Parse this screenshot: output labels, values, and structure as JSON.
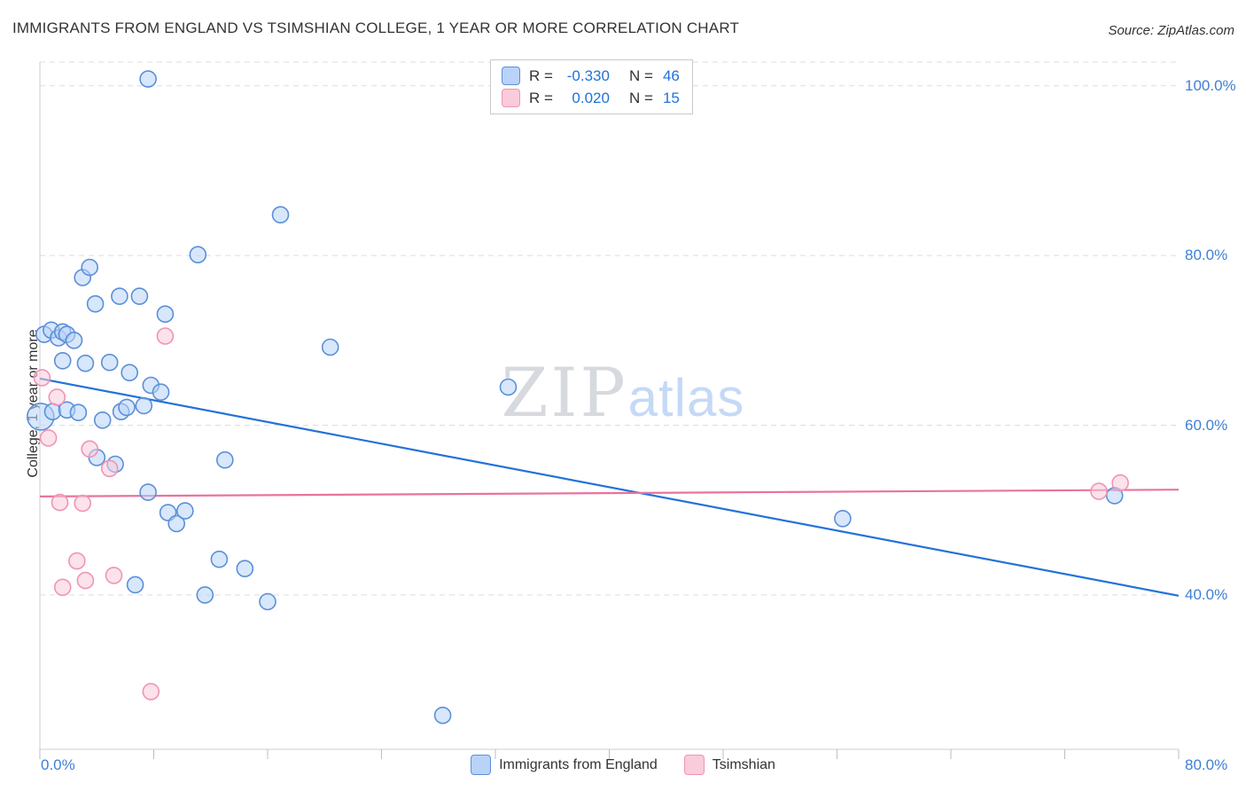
{
  "header": {
    "title": "IMMIGRANTS FROM ENGLAND VS TSIMSHIAN COLLEGE, 1 YEAR OR MORE CORRELATION CHART",
    "source": "Source: ZipAtlas.com"
  },
  "watermark": {
    "zip": "ZIP",
    "atlas": "atlas"
  },
  "axes": {
    "ylabel": "College, 1 year or more",
    "y_tick_labels": [
      "100.0%",
      "80.0%",
      "60.0%",
      "40.0%"
    ],
    "x_left_label": "0.0%",
    "x_right_label": "80.0%"
  },
  "legend_box": {
    "rows": [
      {
        "series": "Immigrants from England",
        "r_label": "R =",
        "r_value": "-0.330",
        "n_label": "N =",
        "n_value": "46"
      },
      {
        "series": "Tsimshian",
        "r_label": "R =",
        "r_value": "0.020",
        "n_label": "N =",
        "n_value": "15"
      }
    ]
  },
  "bottom_legend": [
    {
      "label": "Immigrants from England"
    },
    {
      "label": "Tsimshian"
    }
  ],
  "chart_data": {
    "type": "scatter",
    "title": "IMMIGRANTS FROM ENGLAND VS TSIMSHIAN COLLEGE, 1 YEAR OR MORE CORRELATION CHART",
    "ylabel": "College, 1 year or more",
    "xlim": [
      0,
      80
    ],
    "ylim": [
      21.8,
      102.8
    ],
    "x_ticks_pct": [
      0,
      8,
      16,
      24,
      32,
      40,
      48,
      56,
      64,
      72,
      80
    ],
    "y_grid": [
      100,
      80,
      60,
      40
    ],
    "grid_on": true,
    "legend_position": "bottom-center",
    "series": [
      {
        "name": "Immigrants from England",
        "R": -0.33,
        "N": 46,
        "stroke": "#5b8fd9",
        "fill": "#b8d3f7",
        "line_color": "#2272d9",
        "trend": [
          [
            0,
            65.5
          ],
          [
            80,
            39.9
          ]
        ],
        "points": [
          [
            7.6,
            100.8
          ],
          [
            16.9,
            84.8
          ],
          [
            11.1,
            80.1
          ],
          [
            3.0,
            77.4
          ],
          [
            3.5,
            78.6
          ],
          [
            3.9,
            74.3
          ],
          [
            5.6,
            75.2
          ],
          [
            7.0,
            75.2
          ],
          [
            8.8,
            73.1
          ],
          [
            20.4,
            69.2
          ],
          [
            0.3,
            70.7
          ],
          [
            0.8,
            71.2
          ],
          [
            1.3,
            70.3
          ],
          [
            1.6,
            71.0
          ],
          [
            1.9,
            70.7
          ],
          [
            2.4,
            70.0
          ],
          [
            1.6,
            67.6
          ],
          [
            3.2,
            67.3
          ],
          [
            4.9,
            67.4
          ],
          [
            6.3,
            66.2
          ],
          [
            7.8,
            64.7
          ],
          [
            8.5,
            63.9
          ],
          [
            32.9,
            64.5
          ],
          [
            0.05,
            61.0,
            15
          ],
          [
            0.9,
            61.6
          ],
          [
            1.9,
            61.8
          ],
          [
            2.7,
            61.5
          ],
          [
            4.4,
            60.6
          ],
          [
            5.7,
            61.6
          ],
          [
            6.1,
            62.1
          ],
          [
            7.3,
            62.3
          ],
          [
            4.0,
            56.2
          ],
          [
            5.3,
            55.4
          ],
          [
            13.0,
            55.9
          ],
          [
            7.6,
            52.1
          ],
          [
            9.0,
            49.7
          ],
          [
            9.6,
            48.4
          ],
          [
            10.2,
            49.9
          ],
          [
            56.4,
            49.0
          ],
          [
            75.5,
            51.7
          ],
          [
            12.6,
            44.2
          ],
          [
            14.4,
            43.1
          ],
          [
            6.7,
            41.2
          ],
          [
            11.6,
            40.0
          ],
          [
            16.0,
            39.2
          ],
          [
            28.3,
            25.8
          ]
        ]
      },
      {
        "name": "Tsimshian",
        "R": 0.02,
        "N": 15,
        "stroke": "#f094b4",
        "fill": "#f9cbdb",
        "line_color": "#e8739f",
        "trend": [
          [
            0,
            51.6
          ],
          [
            80,
            52.4
          ]
        ],
        "points": [
          [
            0.15,
            65.6
          ],
          [
            1.2,
            63.3
          ],
          [
            0.6,
            58.5
          ],
          [
            8.8,
            70.5
          ],
          [
            3.5,
            57.2
          ],
          [
            1.4,
            50.9
          ],
          [
            3.0,
            50.8
          ],
          [
            4.9,
            54.9
          ],
          [
            2.6,
            44.0
          ],
          [
            1.6,
            40.9
          ],
          [
            3.2,
            41.7
          ],
          [
            5.2,
            42.3
          ],
          [
            7.8,
            28.6
          ],
          [
            74.4,
            52.2
          ],
          [
            75.9,
            53.2
          ]
        ]
      }
    ]
  }
}
